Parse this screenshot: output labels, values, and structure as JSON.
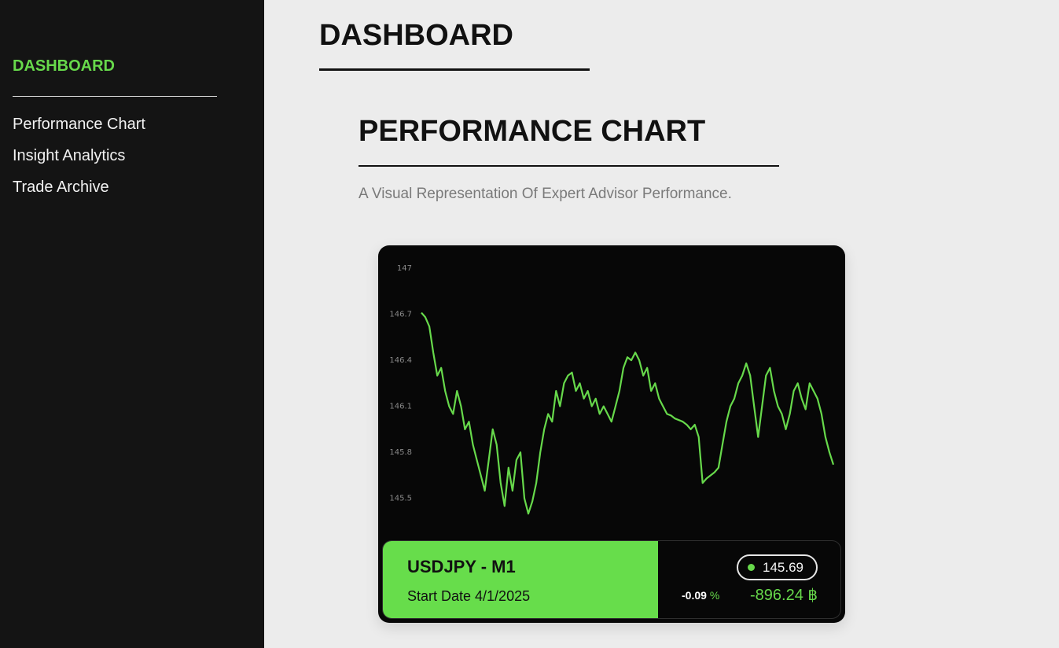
{
  "sidebar": {
    "brand": "DASHBOARD",
    "nav": [
      "Performance Chart",
      "Insight Analytics",
      "Trade Archive"
    ]
  },
  "main": {
    "title": "DASHBOARD",
    "section_title": "PERFORMANCE CHART",
    "section_subtitle": "A Visual Representation Of Expert Advisor Performance."
  },
  "card": {
    "symbol": "USDJPY - M1",
    "start_date": "Start Date 4/1/2025",
    "price": "145.69",
    "percent": "-0.09",
    "percent_sign": "%",
    "pnl": "-896.24",
    "currency": "฿"
  },
  "colors": {
    "accent": "#67d94b",
    "sidebar_bg": "#141414",
    "card_bg": "#070707",
    "page_bg": "#ececec"
  },
  "chart_data": {
    "type": "line",
    "ylim": [
      145.35,
      147.0
    ],
    "yticks": [
      "147",
      "146.7",
      "146.4",
      "146.1",
      "145.8",
      "145.5"
    ],
    "grid": false,
    "series": [
      {
        "values": [
          146.71,
          146.68,
          146.62,
          146.45,
          146.3,
          146.35,
          146.2,
          146.1,
          146.05,
          146.2,
          146.1,
          145.95,
          146.0,
          145.85,
          145.75,
          145.65,
          145.55,
          145.75,
          145.95,
          145.85,
          145.6,
          145.45,
          145.7,
          145.55,
          145.75,
          145.8,
          145.5,
          145.4,
          145.48,
          145.6,
          145.8,
          145.95,
          146.05,
          146.0,
          146.2,
          146.1,
          146.25,
          146.3,
          146.32,
          146.2,
          146.25,
          146.15,
          146.2,
          146.1,
          146.15,
          146.05,
          146.1,
          146.05,
          146.0,
          146.1,
          146.2,
          146.35,
          146.42,
          146.4,
          146.45,
          146.4,
          146.3,
          146.35,
          146.2,
          146.25,
          146.15,
          146.1,
          146.05,
          146.04,
          146.02,
          146.01,
          146.0,
          145.98,
          145.95,
          145.98,
          145.9,
          145.6,
          145.63,
          145.65,
          145.67,
          145.7,
          145.85,
          146.0,
          146.1,
          146.15,
          146.25,
          146.3,
          146.38,
          146.3,
          146.1,
          145.9,
          146.1,
          146.3,
          146.35,
          146.2,
          146.1,
          146.05,
          145.95,
          146.05,
          146.2,
          146.25,
          146.15,
          146.08,
          146.25,
          146.2,
          146.15,
          146.05,
          145.9,
          145.8,
          145.72
        ]
      }
    ]
  }
}
